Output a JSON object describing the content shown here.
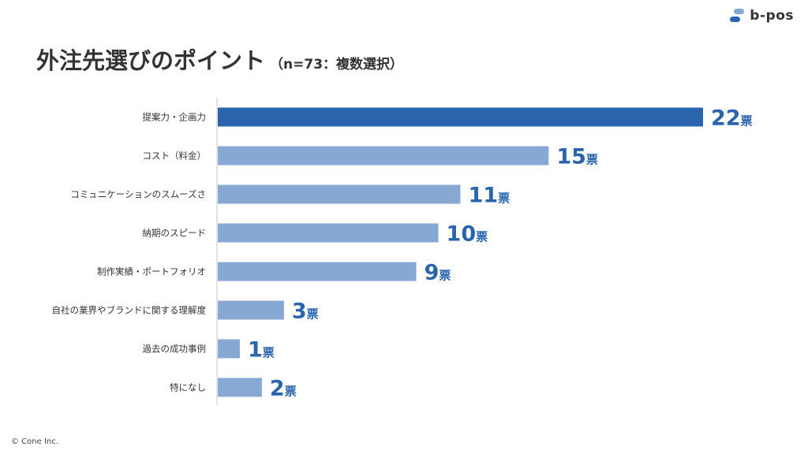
{
  "brand": {
    "name": "b-pos",
    "accent": "#2a64ad",
    "light": "#86a8d3"
  },
  "title": "外注先選びのポイント",
  "subtitle": "（n=73：複数選択）",
  "copyright": "© Cone Inc.",
  "chart_data": {
    "type": "bar",
    "orientation": "horizontal",
    "categories": [
      "提案力・企画力",
      "コスト（料金）",
      "コミュニケーションのスムーズさ",
      "納期のスピード",
      "制作実績・ポートフォリオ",
      "自社の業界やブランドに関する理解度",
      "過去の成功事例",
      "特になし"
    ],
    "values": [
      22,
      15,
      11,
      10,
      9,
      3,
      1,
      2
    ],
    "value_unit": "票",
    "highlight_index": 0,
    "xlim": [
      0,
      22
    ],
    "grid": false,
    "legend": "none"
  }
}
